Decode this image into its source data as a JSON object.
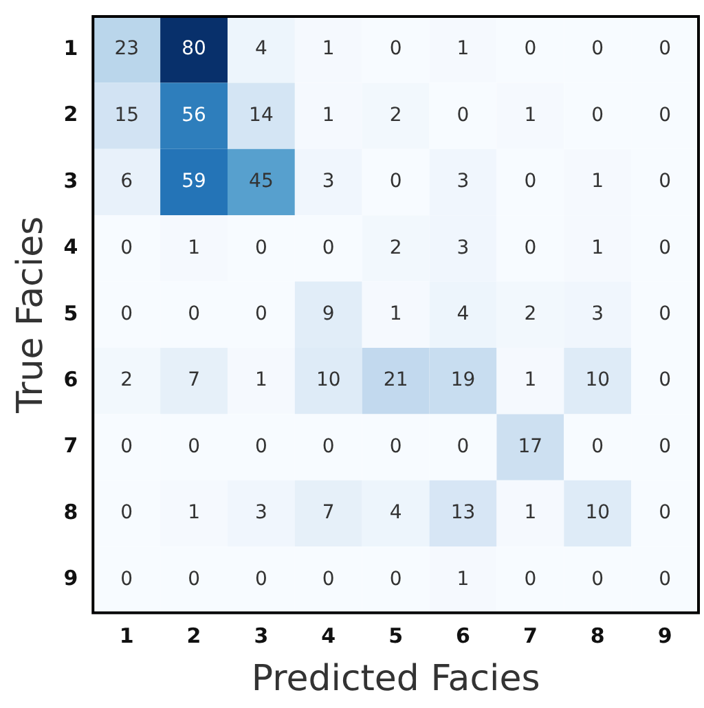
{
  "chart_data": {
    "type": "heatmap",
    "xlabel": "Predicted Facies",
    "ylabel": "True Facies",
    "categories": [
      "1",
      "2",
      "3",
      "4",
      "5",
      "6",
      "7",
      "8",
      "9"
    ],
    "y_categories": [
      "1",
      "2",
      "3",
      "4",
      "5",
      "6",
      "7",
      "8",
      "9"
    ],
    "cells": [
      [
        23,
        80,
        4,
        1,
        0,
        1,
        0,
        0,
        0
      ],
      [
        15,
        56,
        14,
        1,
        2,
        0,
        1,
        0,
        0
      ],
      [
        6,
        59,
        45,
        3,
        0,
        3,
        0,
        1,
        0
      ],
      [
        0,
        1,
        0,
        0,
        2,
        3,
        0,
        1,
        0
      ],
      [
        0,
        0,
        0,
        9,
        1,
        4,
        2,
        3,
        0
      ],
      [
        2,
        7,
        1,
        10,
        21,
        19,
        1,
        10,
        0
      ],
      [
        0,
        0,
        0,
        0,
        0,
        0,
        17,
        0,
        0
      ],
      [
        0,
        1,
        3,
        7,
        4,
        13,
        1,
        10,
        0
      ],
      [
        0,
        0,
        0,
        0,
        0,
        1,
        0,
        0,
        0
      ]
    ],
    "data_labels": true
  }
}
